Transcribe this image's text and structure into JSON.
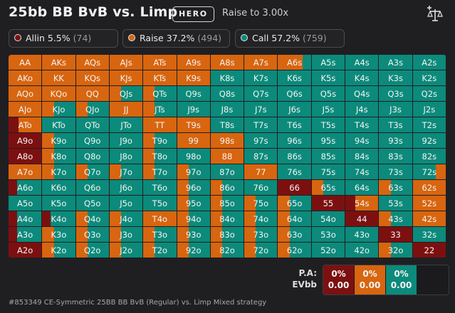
{
  "header": {
    "title": "25bb BB BvB vs. Limp",
    "hero_badge": "HERO",
    "subtitle": "Raise to 3.00x",
    "scale_icon": "scale-plus-icon"
  },
  "legend": {
    "allin": {
      "label": "Allin 5.5%",
      "count": "(74)",
      "color": "#7c1010"
    },
    "raise": {
      "label": "Raise 37.2%",
      "count": "(494)",
      "color": "#d8650f"
    },
    "call": {
      "label": "Call 57.2%",
      "count": "(759)",
      "color": "#0c8a7b"
    }
  },
  "hand_matrix": {
    "rows": [
      [
        [
          "AA",
          "r"
        ],
        [
          "AKs",
          "r"
        ],
        [
          "AQs",
          "r"
        ],
        [
          "AJs",
          "r"
        ],
        [
          "ATs",
          "r"
        ],
        [
          "A9s",
          "r"
        ],
        [
          "A8s",
          "r"
        ],
        [
          "A7s",
          "r"
        ],
        [
          "A6s",
          "r3c1"
        ],
        [
          "A5s",
          "c"
        ],
        [
          "A4s",
          "c"
        ],
        [
          "A3s",
          "c"
        ],
        [
          "A2s",
          "c"
        ]
      ],
      [
        [
          "AKo",
          "r"
        ],
        [
          "KK",
          "r"
        ],
        [
          "KQs",
          "r"
        ],
        [
          "KJs",
          "r"
        ],
        [
          "KTs",
          "r"
        ],
        [
          "K9s",
          "r"
        ],
        [
          "K8s",
          "c"
        ],
        [
          "K7s",
          "c"
        ],
        [
          "K6s",
          "c"
        ],
        [
          "K5s",
          "c"
        ],
        [
          "K4s",
          "c"
        ],
        [
          "K3s",
          "c"
        ],
        [
          "K2s",
          "c"
        ]
      ],
      [
        [
          "AQo",
          "r"
        ],
        [
          "KQo",
          "r"
        ],
        [
          "QQ",
          "r"
        ],
        [
          "QJs",
          "rc"
        ],
        [
          "QTs",
          "rc"
        ],
        [
          "Q9s",
          "c"
        ],
        [
          "Q8s",
          "c"
        ],
        [
          "Q7s",
          "c"
        ],
        [
          "Q6s",
          "c"
        ],
        [
          "Q5s",
          "c"
        ],
        [
          "Q4s",
          "c"
        ],
        [
          "Q3s",
          "c"
        ],
        [
          "Q2s",
          "c"
        ]
      ],
      [
        [
          "AJo",
          "r"
        ],
        [
          "KJo",
          "rc"
        ],
        [
          "QJo",
          "rc"
        ],
        [
          "JJ",
          "r"
        ],
        [
          "JTs",
          "rc"
        ],
        [
          "J9s",
          "c"
        ],
        [
          "J8s",
          "c"
        ],
        [
          "J7s",
          "c"
        ],
        [
          "J6s",
          "c"
        ],
        [
          "J5s",
          "c"
        ],
        [
          "J4s",
          "c"
        ],
        [
          "J3s",
          "c"
        ],
        [
          "J2s",
          "c"
        ]
      ],
      [
        [
          "ATo",
          "ar"
        ],
        [
          "KTo",
          "c"
        ],
        [
          "QTo",
          "c"
        ],
        [
          "JTo",
          "c"
        ],
        [
          "TT",
          "r"
        ],
        [
          "T9s",
          "r"
        ],
        [
          "T8s",
          "c"
        ],
        [
          "T7s",
          "c"
        ],
        [
          "T6s",
          "c"
        ],
        [
          "T5s",
          "c"
        ],
        [
          "T4s",
          "c"
        ],
        [
          "T3s",
          "c"
        ],
        [
          "T2s",
          "c"
        ]
      ],
      [
        [
          "A9o",
          "a"
        ],
        [
          "K9o",
          "rc"
        ],
        [
          "Q9o",
          "c"
        ],
        [
          "J9o",
          "c"
        ],
        [
          "T9o",
          "rc"
        ],
        [
          "99",
          "r"
        ],
        [
          "98s",
          "r"
        ],
        [
          "97s",
          "c"
        ],
        [
          "96s",
          "c"
        ],
        [
          "95s",
          "c"
        ],
        [
          "94s",
          "c"
        ],
        [
          "93s",
          "c"
        ],
        [
          "92s",
          "c"
        ]
      ],
      [
        [
          "A8o",
          "a"
        ],
        [
          "K8o",
          "rc"
        ],
        [
          "Q8o",
          "c"
        ],
        [
          "J8o",
          "c"
        ],
        [
          "T8o",
          "rc"
        ],
        [
          "98o",
          "c"
        ],
        [
          "88",
          "r"
        ],
        [
          "87s",
          "c"
        ],
        [
          "86s",
          "c"
        ],
        [
          "85s",
          "c"
        ],
        [
          "84s",
          "c"
        ],
        [
          "83s",
          "c"
        ],
        [
          "82s",
          "c"
        ]
      ],
      [
        [
          "A7o",
          "r"
        ],
        [
          "K7o",
          "rc"
        ],
        [
          "Q7o",
          "rc"
        ],
        [
          "J7o",
          "rc"
        ],
        [
          "T7o",
          "rc"
        ],
        [
          "97o",
          "rc"
        ],
        [
          "87o",
          "c"
        ],
        [
          "77",
          "r"
        ],
        [
          "76s",
          "c"
        ],
        [
          "75s",
          "c"
        ],
        [
          "74s",
          "c"
        ],
        [
          "73s",
          "c"
        ],
        [
          "72s",
          "cr"
        ]
      ],
      [
        [
          "A6o",
          "ac"
        ],
        [
          "K6o",
          "c"
        ],
        [
          "Q6o",
          "c"
        ],
        [
          "J6o",
          "c"
        ],
        [
          "T6o",
          "c"
        ],
        [
          "96o",
          "rc"
        ],
        [
          "86o",
          "rc"
        ],
        [
          "76o",
          "c"
        ],
        [
          "66",
          "a"
        ],
        [
          "65s",
          "rc"
        ],
        [
          "64s",
          "c"
        ],
        [
          "63s",
          "rc"
        ],
        [
          "62s",
          "r"
        ]
      ],
      [
        [
          "A5o",
          "c"
        ],
        [
          "K5o",
          "c"
        ],
        [
          "Q5o",
          "c"
        ],
        [
          "J5o",
          "c"
        ],
        [
          "T5o",
          "c"
        ],
        [
          "95o",
          "rc"
        ],
        [
          "85o",
          "rc"
        ],
        [
          "75o",
          "rc"
        ],
        [
          "65o",
          "rc"
        ],
        [
          "55",
          "a"
        ],
        [
          "54s",
          "ar"
        ],
        [
          "53s",
          "c"
        ],
        [
          "52s",
          "r"
        ]
      ],
      [
        [
          "A4o",
          "ac"
        ],
        [
          "K4o",
          "ac"
        ],
        [
          "Q4o",
          "rc"
        ],
        [
          "J4o",
          "rc"
        ],
        [
          "T4o",
          "r"
        ],
        [
          "94o",
          "rc"
        ],
        [
          "84o",
          "rc"
        ],
        [
          "74o",
          "rc"
        ],
        [
          "64o",
          "rc"
        ],
        [
          "54o",
          "c"
        ],
        [
          "44",
          "a"
        ],
        [
          "43s",
          "rc"
        ],
        [
          "42s",
          "r"
        ]
      ],
      [
        [
          "A3o",
          "ac"
        ],
        [
          "K3o",
          "rc"
        ],
        [
          "Q3o",
          "rc"
        ],
        [
          "J3o",
          "rc"
        ],
        [
          "T3o",
          "rc"
        ],
        [
          "93o",
          "rc"
        ],
        [
          "83o",
          "rc"
        ],
        [
          "73o",
          "rc"
        ],
        [
          "63o",
          "rc"
        ],
        [
          "53o",
          "c"
        ],
        [
          "43o",
          "c"
        ],
        [
          "33",
          "a"
        ],
        [
          "32s",
          "c"
        ]
      ],
      [
        [
          "A2o",
          "a"
        ],
        [
          "K2o",
          "rc"
        ],
        [
          "Q2o",
          "rc"
        ],
        [
          "J2o",
          "rc"
        ],
        [
          "T2o",
          "rc"
        ],
        [
          "92o",
          "rc"
        ],
        [
          "82o",
          "rc"
        ],
        [
          "72o",
          "rc"
        ],
        [
          "62o",
          "rc"
        ],
        [
          "52o",
          "c"
        ],
        [
          "42o",
          "c"
        ],
        [
          "32o",
          "rc"
        ],
        [
          "22",
          "a"
        ]
      ]
    ]
  },
  "summary": {
    "pa_label": "P.A:",
    "evbb_label": "EVbb",
    "boxes": [
      {
        "pct": "0%",
        "ev": "0.00",
        "color": "#7c1010"
      },
      {
        "pct": "0%",
        "ev": "0.00",
        "color": "#d8650f"
      },
      {
        "pct": "0%",
        "ev": "0.00",
        "color": "#0c8a7b"
      }
    ]
  },
  "footer": {
    "text": "#853349 CE-Symmetric 25BB BB BvB (Regular) vs. Limp Mixed strategy"
  }
}
